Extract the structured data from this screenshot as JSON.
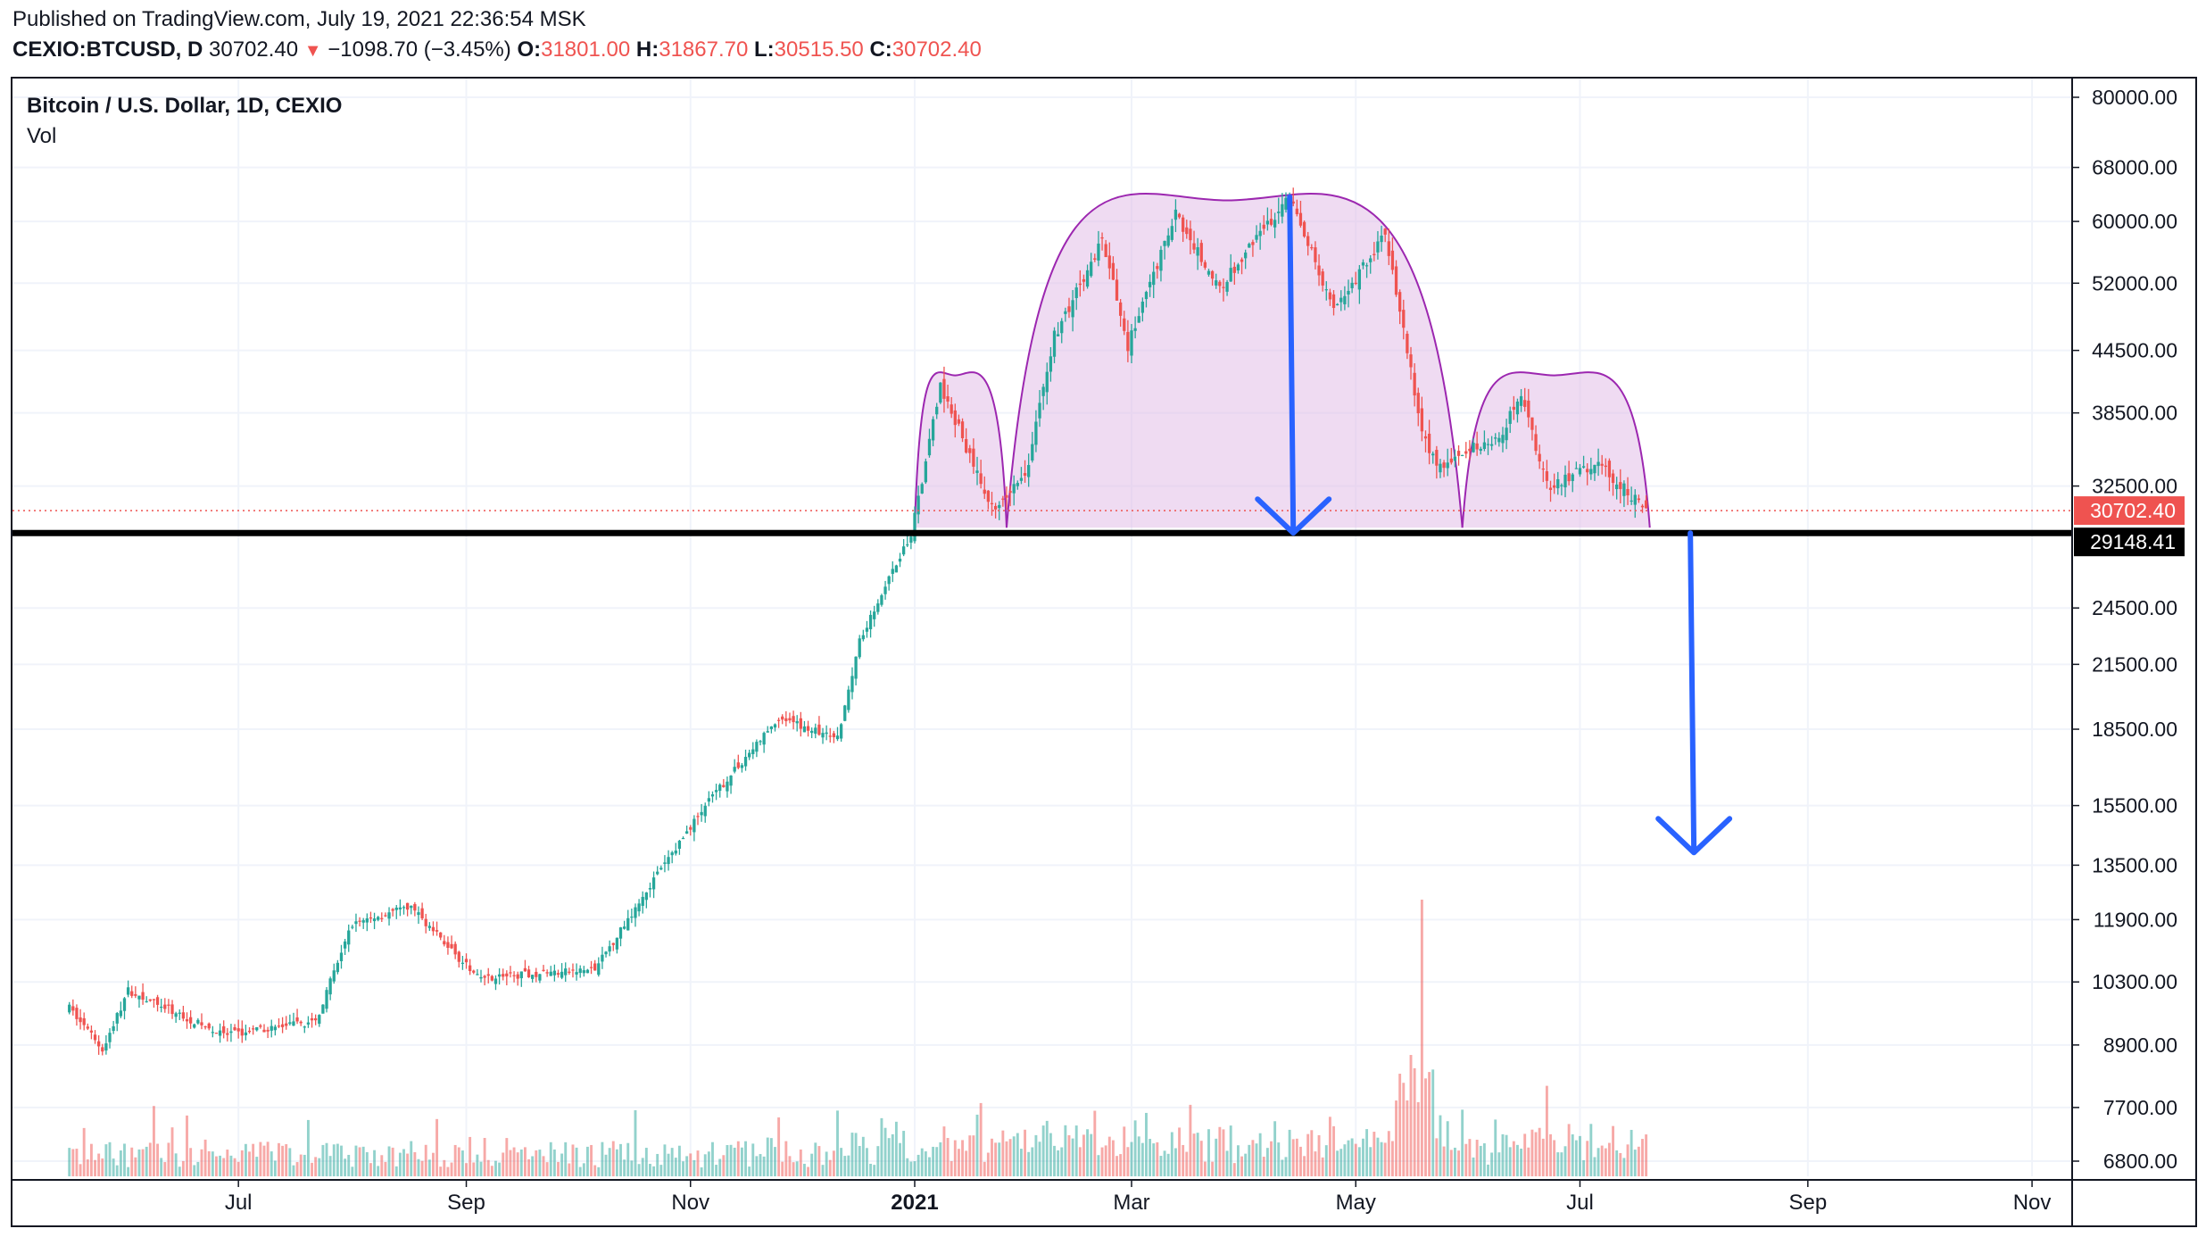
{
  "header": {
    "published": "Published on TradingView.com, July 19, 2021 22:36:54 MSK",
    "symbol": "CEXIO:BTCUSD, D",
    "last": "30702.40",
    "arrow": "▼",
    "change": "−1098.70 (−3.45%)",
    "o_label": "O:",
    "o_value": "31801.00",
    "h_label": "H:",
    "h_value": "31867.70",
    "l_label": "L:",
    "l_value": "30515.50",
    "c_label": "C:",
    "c_value": "30702.40"
  },
  "legend": {
    "title": "Bitcoin / U.S. Dollar, 1D, CEXIO",
    "volume": "Vol"
  },
  "colors": {
    "up": "#26a69a",
    "down": "#ef5350",
    "pattern_fill": "#e1bee7",
    "pattern_line": "#9c27b0",
    "arrow": "#2962ff",
    "support_line": "#000000",
    "grid": "#f0f3fa"
  },
  "chart_data": {
    "type": "candlestick",
    "title": "Bitcoin / U.S. Dollar, 1D, CEXIO",
    "scale": "log",
    "y_ticks": [
      80000,
      68000,
      60000,
      52000,
      44500,
      38500,
      32500,
      24500,
      21500,
      18500,
      15500,
      13500,
      11900,
      10300,
      8900,
      7700,
      6800
    ],
    "y_tick_labels": [
      "80000.00",
      "68000.00",
      "60000.00",
      "52000.00",
      "44500.00",
      "38500.00",
      "32500.00",
      "24500.00",
      "21500.00",
      "18500.00",
      "15500.00",
      "13500.00",
      "11900.00",
      "10300.00",
      "8900.00",
      "7700.00",
      "6800.00"
    ],
    "x_ticks": [
      "Jul",
      "Sep",
      "Nov",
      "2021",
      "Mar",
      "May",
      "Jul",
      "Sep",
      "Nov"
    ],
    "x_tick_dates": [
      "2020-07-01",
      "2020-09-01",
      "2020-11-01",
      "2021-01-01",
      "2021-03-01",
      "2021-05-01",
      "2021-07-01",
      "2021-09-01",
      "2021-11-01"
    ],
    "date_range": [
      "2020-05-16",
      "2021-11-12"
    ],
    "last_price": 30702.4,
    "last_price_label": "30702.40",
    "support_level": 29148.41,
    "support_label": "29148.41",
    "key_points": [
      {
        "date": "2020-05-16",
        "close": 9700
      },
      {
        "date": "2020-05-25",
        "close": 8800
      },
      {
        "date": "2020-06-01",
        "close": 10100
      },
      {
        "date": "2020-06-27",
        "close": 9100
      },
      {
        "date": "2020-07-22",
        "close": 9400
      },
      {
        "date": "2020-08-01",
        "close": 11800
      },
      {
        "date": "2020-08-17",
        "close": 12250
      },
      {
        "date": "2020-09-04",
        "close": 10400
      },
      {
        "date": "2020-10-06",
        "close": 10600
      },
      {
        "date": "2020-10-21",
        "close": 12900
      },
      {
        "date": "2020-11-05",
        "close": 15500
      },
      {
        "date": "2020-11-25",
        "close": 19000
      },
      {
        "date": "2020-12-11",
        "close": 18100
      },
      {
        "date": "2020-12-17",
        "close": 22800
      },
      {
        "date": "2020-12-31",
        "close": 29000
      },
      {
        "date": "2021-01-08",
        "close": 41000
      },
      {
        "date": "2021-01-22",
        "close": 30900
      },
      {
        "date": "2021-01-31",
        "close": 33100
      },
      {
        "date": "2021-02-08",
        "close": 46000
      },
      {
        "date": "2021-02-21",
        "close": 57500
      },
      {
        "date": "2021-02-28",
        "close": 45000
      },
      {
        "date": "2021-03-13",
        "close": 61000
      },
      {
        "date": "2021-03-25",
        "close": 51500
      },
      {
        "date": "2021-04-13",
        "close": 63500
      },
      {
        "date": "2021-04-25",
        "close": 49000
      },
      {
        "date": "2021-05-09",
        "close": 58000
      },
      {
        "date": "2021-05-19",
        "close": 37000
      },
      {
        "date": "2021-05-23",
        "close": 34000
      },
      {
        "date": "2021-06-09",
        "close": 36500
      },
      {
        "date": "2021-06-15",
        "close": 40000
      },
      {
        "date": "2021-06-22",
        "close": 32500
      },
      {
        "date": "2021-07-06",
        "close": 34200
      },
      {
        "date": "2021-07-19",
        "close": 30702.4
      }
    ],
    "volume_spike_date": "2021-05-19",
    "pattern": "head-and-shoulders",
    "pattern_points": [
      {
        "name": "left_shoulder",
        "from": "2021-01-01",
        "peak": "2021-01-12",
        "to": "2021-01-26",
        "peak_price": 42000
      },
      {
        "name": "head",
        "from": "2021-01-26",
        "peak": "2021-03-27",
        "to": "2021-05-30",
        "peak_price": 63000
      },
      {
        "name": "right_shoulder",
        "from": "2021-05-30",
        "peak": "2021-06-24",
        "to": "2021-07-20",
        "peak_price": 42000
      }
    ],
    "arrows": [
      {
        "name": "head-height",
        "date": "2021-04-14",
        "from_price": 63500,
        "to_price": 29148.41
      },
      {
        "name": "target",
        "date": "2021-08-01",
        "from_price": 29148.41,
        "to_price": 13900
      }
    ]
  }
}
